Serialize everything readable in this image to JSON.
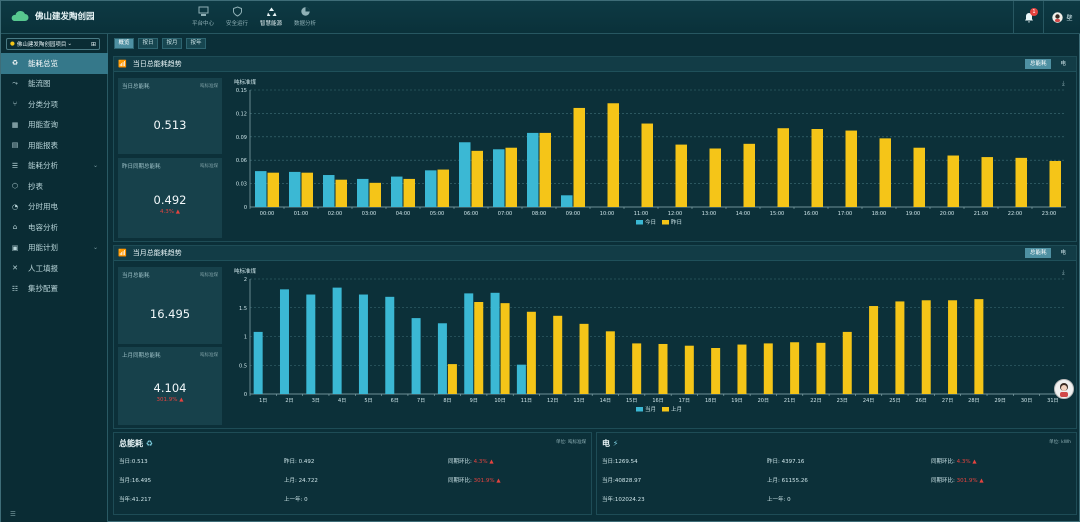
{
  "app": {
    "title": "佛山建发陶创园"
  },
  "topnav": [
    {
      "label": "平台中心",
      "active": false
    },
    {
      "label": "安全运行",
      "active": false
    },
    {
      "label": "智慧能源",
      "active": true
    },
    {
      "label": "数据分析",
      "active": false
    }
  ],
  "notifications": {
    "count": "1"
  },
  "user": {
    "name": "壁"
  },
  "sidebar": {
    "project": "佛山建发陶创园项目",
    "items": [
      {
        "label": "能耗总览",
        "icon": "recycle-icon",
        "active": true
      },
      {
        "label": "能流图",
        "icon": "flow-icon"
      },
      {
        "label": "分类分项",
        "icon": "branch-icon"
      },
      {
        "label": "用能查询",
        "icon": "table-icon"
      },
      {
        "label": "用能报表",
        "icon": "report-icon"
      },
      {
        "label": "能耗分析",
        "icon": "analysis-icon",
        "expandable": true
      },
      {
        "label": "抄表",
        "icon": "meter-icon"
      },
      {
        "label": "分时用电",
        "icon": "clock-icon"
      },
      {
        "label": "电容分析",
        "icon": "capacitor-icon"
      },
      {
        "label": "用能计划",
        "icon": "plan-icon",
        "expandable": true
      },
      {
        "label": "人工填报",
        "icon": "tools-icon"
      },
      {
        "label": "集抄配置",
        "icon": "config-icon"
      }
    ],
    "footer": "☰"
  },
  "tabs": [
    {
      "label": "概览",
      "active": true
    },
    {
      "label": "按日"
    },
    {
      "label": "按月"
    },
    {
      "label": "按年"
    }
  ],
  "daily": {
    "title": "当日总能耗趋势",
    "buttons": [
      {
        "label": "总能耗",
        "active": true
      },
      {
        "label": "电",
        "active": false
      }
    ],
    "card1": {
      "title": "当日总能耗",
      "unit": "吨标准煤",
      "value": "0.513"
    },
    "card2": {
      "title": "昨日同期总能耗",
      "unit": "吨标准煤",
      "value": "0.492",
      "pct": "4.3% ▲"
    }
  },
  "monthly": {
    "title": "当月总能耗趋势",
    "buttons": [
      {
        "label": "总能耗",
        "active": true
      },
      {
        "label": "电",
        "active": false
      }
    ],
    "card1": {
      "title": "当月总能耗",
      "unit": "吨标准煤",
      "value": "16.495"
    },
    "card2": {
      "title": "上月同期总能耗",
      "unit": "吨标准煤",
      "value": "4.104",
      "pct": "301.9% ▲"
    }
  },
  "chart_data": [
    {
      "type": "bar",
      "ylabel": "吨标准煤",
      "ylim": [
        0,
        0.15
      ],
      "yticks": [
        "0",
        "0.03",
        "0.06",
        "0.09",
        "0.12",
        "0.15"
      ],
      "categories": [
        "00:00",
        "01:00",
        "02:00",
        "03:00",
        "04:00",
        "05:00",
        "06:00",
        "07:00",
        "08:00",
        "09:00",
        "10:00",
        "11:00",
        "12:00",
        "13:00",
        "14:00",
        "15:00",
        "16:00",
        "17:00",
        "18:00",
        "19:00",
        "20:00",
        "21:00",
        "22:00",
        "23:00"
      ],
      "series": [
        {
          "name": "今日",
          "color": "#3bb8d4",
          "values": [
            0.046,
            0.045,
            0.041,
            0.036,
            0.039,
            0.047,
            0.083,
            0.074,
            0.095,
            0.015,
            null,
            null,
            null,
            null,
            null,
            null,
            null,
            null,
            null,
            null,
            null,
            null,
            null,
            null
          ]
        },
        {
          "name": "昨日",
          "color": "#f5c518",
          "values": [
            0.044,
            0.044,
            0.035,
            0.031,
            0.036,
            0.048,
            0.072,
            0.076,
            0.095,
            0.127,
            0.133,
            0.107,
            0.08,
            0.075,
            0.081,
            0.101,
            0.1,
            0.098,
            0.088,
            0.076,
            0.066,
            0.064,
            0.063,
            0.059
          ]
        }
      ],
      "legend": "bottom"
    },
    {
      "type": "bar",
      "ylabel": "吨标准煤",
      "ylim": [
        0,
        2
      ],
      "yticks": [
        "0",
        "0.5",
        "1",
        "1.5",
        "2"
      ],
      "categories": [
        "1日",
        "2日",
        "3日",
        "4日",
        "5日",
        "6日",
        "7日",
        "8日",
        "9日",
        "10日",
        "11日",
        "12日",
        "13日",
        "14日",
        "15日",
        "16日",
        "17日",
        "18日",
        "19日",
        "20日",
        "21日",
        "22日",
        "23日",
        "24日",
        "25日",
        "26日",
        "27日",
        "28日",
        "29日",
        "30日",
        "31日"
      ],
      "series": [
        {
          "name": "当月",
          "color": "#3bb8d4",
          "values": [
            1.08,
            1.82,
            1.73,
            1.85,
            1.73,
            1.69,
            1.32,
            1.23,
            1.75,
            1.76,
            0.51,
            null,
            null,
            null,
            null,
            null,
            null,
            null,
            null,
            null,
            null,
            null,
            null,
            null,
            null,
            null,
            null,
            null,
            null,
            null,
            null
          ]
        },
        {
          "name": "上月",
          "color": "#f5c518",
          "values": [
            null,
            null,
            null,
            null,
            null,
            null,
            null,
            0.52,
            1.6,
            1.58,
            1.43,
            1.36,
            1.22,
            1.09,
            0.88,
            0.87,
            0.84,
            0.8,
            0.86,
            0.88,
            0.9,
            0.89,
            1.08,
            1.53,
            1.61,
            1.63,
            1.63,
            1.65,
            null,
            null,
            null
          ]
        }
      ],
      "legend": "bottom"
    }
  ],
  "total": {
    "title": "总能耗",
    "unit": "单位: 吨标准煤",
    "today": "当日:0.513",
    "yesterday": "昨日: 0.492",
    "yoy_label": "同期环比:",
    "yoy_value": "4.3% ▲",
    "month": "当月:16.495",
    "lastmonth": "上月: 24.722",
    "mom_label": "同期环比:",
    "mom_value": "301.9% ▲",
    "year": "当年:41.217",
    "lastyear": "上一年: 0"
  },
  "elec": {
    "title": "电",
    "unit": "单位: kWh",
    "today": "当日:1269.54",
    "yesterday": "昨日: 4397.16",
    "yoy_label": "同期环比:",
    "yoy_value": "4.3% ▲",
    "month": "当月:40828.97",
    "lastmonth": "上月: 61155.26",
    "mom_label": "同期环比:",
    "mom_value": "301.9% ▲",
    "year": "当年:102024.23",
    "lastyear": "上一年: 0"
  }
}
